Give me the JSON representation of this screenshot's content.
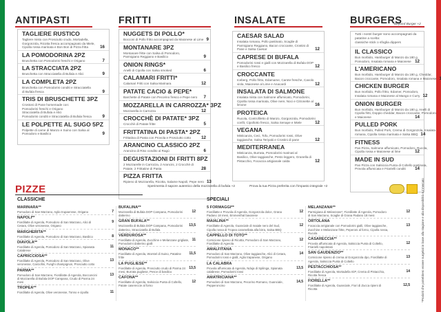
{
  "sections": {
    "antipasti": "ANTIPASTI",
    "fritti": "FRITTI",
    "insalate": "INSALATE",
    "burgers": "BURGERS",
    "pizze": "PIZZE"
  },
  "antipasti": [
    {
      "name": "TAGLIERE RUSTICO",
      "tag": "",
      "price": "16",
      "desc": [
        "Tagliere misto con Prosciutto crudo, Mortadella,",
        "Gorgonzola, Ricotta fresca accompagnato da Miele,",
        "Cipolla rossa marinata e Bon Bon di Pizza fritta"
      ]
    },
    {
      "name": "LA POMODORINA 2PZ",
      "tag": "",
      "price": "7",
      "desc": [
        "Bruschetta con Pomodorini freschi e Origano"
      ]
    },
    {
      "name": "LA STRACCIATA 2PZ",
      "tag": "",
      "price": "9",
      "desc": [
        "Bruschetta con Stracciatella di Bufala e Alici"
      ]
    },
    {
      "name": "LA COMPLETA 2PZ",
      "tag": "",
      "price": "9",
      "desc": [
        "Bruschetta con Pomodorini conditi e Stracciatella",
        "di Bufala fresca"
      ]
    },
    {
      "name": "TRIS DI BRUSCHETTE 3PZ",
      "tag": "",
      "price": "9",
      "desc": [
        "Crostoni di Pane homemade con:",
        "Pomodorini freschi e Origano",
        "Stracciatella di Bufala e Alici",
        "Pomodorini conditi e Stracciatella di Bufala fresca"
      ]
    },
    {
      "name": "LE POLPETTE AL SUGO 5PZ",
      "tag": "",
      "price": "9",
      "desc": [
        "Polpette di carne di Manzo e Suino con Salsa al",
        "Pomodoro e Basilico"
      ]
    }
  ],
  "fritti": [
    {
      "name": "NUGGETS DI POLLO*",
      "tag": "",
      "price": "9",
      "desc": [
        "Bocconi di Pollo fritto accompagnati da Maionese al Lime"
      ]
    },
    {
      "name": "MONTANARE 3PZ",
      "tag": "",
      "price": "9",
      "desc": [
        "Montanare fritte con Salsa di Pomodoro,",
        "Parmigiano Reggiano e Basilico"
      ]
    },
    {
      "name": "ONION RINGS*",
      "tag": "",
      "price": "6",
      "desc": [
        "Anelli di Cipolla con Salsa smoked"
      ]
    },
    {
      "name": "CALAMARI FRITTI*",
      "tag": "",
      "price": "12",
      "desc": [
        "Calamari Fritti con Salsa Marinara"
      ]
    },
    {
      "name": "PATATE CACIO & PEPE*",
      "tag": "",
      "price": "7",
      "desc": [
        "Barchette di Patate con Pecorino fresco e Pepe nero"
      ]
    },
    {
      "name": "MOZZARELLA IN CARROZZA* 3PZ",
      "tag": "",
      "price": "12",
      "desc": [
        "Mozzarella in Carrozza"
      ]
    },
    {
      "name": "CROCCHÈ DI PATATE* 3PZ",
      "tag": "",
      "price": "5",
      "desc": [
        "Crocchè di Patate fritte"
      ]
    },
    {
      "name": "FRITTATINA DI PASTA* 2PZ",
      "tag": "",
      "price": "12",
      "desc": [
        "Frittatina di Pasta con Provola e Prosciutto cotto"
      ]
    },
    {
      "name": "ARANCINO CLASSICO 2PZ",
      "tag": "",
      "price": "6",
      "desc": [
        "Arancino di Riso condito al Ragù"
      ]
    },
    {
      "name": "DEGUSTAZIONI DI FRITTI 8PZ",
      "tag": "",
      "price": "28",
      "desc": [
        "2 Mozzarelle in Carrozza, 2 Arancini, 2 Crocchè di",
        "Patate, 2 Frittatine di Pasta"
      ]
    },
    {
      "name": "PIZZA FRITTA",
      "tag": "",
      "price": "13",
      "desc": [
        "Ripieno di Mozzarella, Ricotta, Salame Napoli, Pepe nero"
      ]
    }
  ],
  "insalate": [
    {
      "name": "CAESAR SALAD",
      "tag": "",
      "price": "12",
      "desc": [
        "Insalata romana, Pollo pastinato, Scaglie di",
        "Parmigiano Reggiano, Bacon croccante, Crostini di",
        "Pane e Salsa Caesar"
      ]
    },
    {
      "name": "CAPRESE DI BUFALA",
      "tag": "",
      "price": "12",
      "desc": [
        "Pomodorini rossi e gialli con Mozzarella di Bufala DOP",
        "e Basilico fresco"
      ]
    },
    {
      "name": "CROCCANTE",
      "tag": "",
      "price": "12",
      "desc": [
        "Iceberg, Pollo fritto, Edamame, Carote fresche, Cavolo",
        "viola, Maionese al Lime e Anacardi"
      ]
    },
    {
      "name": "INSALATA DI SALMONE",
      "tag": "",
      "price": "16",
      "desc": [
        "Insalata mista con Salmone affumicato, Pomodorini,",
        "Cipolla rossa marinata, Olive nere, Noci e Citronette al",
        "limone"
      ]
    },
    {
      "name": "PROTEICA",
      "tag": "",
      "price": "12",
      "desc": [
        "Rucola, Controfiletto di Manzo, Gorgonzola, Pomodorini",
        "confit, Cipollotto fresco, Salsa Senape e Miele"
      ]
    },
    {
      "name": "VEGANA",
      "tag": "",
      "price": "12",
      "desc": [
        "Misticanza, Ceci, Tofu, Pomodorini rossi, Olive",
        "taggiasche, Salsa Teriyaki e Crostini di pane"
      ]
    },
    {
      "name": "MEDITERRANEA",
      "tag": "",
      "price": "12",
      "desc": [
        "Misticanza, Burrata, Pomodorini marinati al",
        "Basilico, Olive taggiasche, Pesto leggero, Granella di",
        "Pistacchio, Focaccia artigianale calda"
      ]
    }
  ],
  "burgers": {
    "beyond": "Beyond Burger +2",
    "intro": [
      "Tutti i nostri burger sono accompagnati da patatine a scelta:",
      "classiche stick o sfoglia dippers"
    ],
    "items": [
      {
        "name": "IL CLASSICO",
        "tag": "",
        "price": "12",
        "desc": [
          "Bun morbido, Hamburger di Manzo da 180 g,",
          "Pomodoro, Insalata romana e Maionese"
        ]
      },
      {
        "name": "L'AMERICANO",
        "tag": "",
        "price": "13",
        "desc": [
          "Bun morbido, Hamburger di Manzo da 180 g, Cheddar,",
          "Bacon croccante, Pomodoro, Insalata romana e Maionese"
        ]
      },
      {
        "name": "CHICKEN BURGER",
        "tag": "",
        "price": "12",
        "desc": [
          "Bun morbido, Pollo fritto, Edamer, Pomodoro,",
          "Insalata romana e Maionese al Mango e Curry"
        ]
      },
      {
        "name": "ONION BURGER",
        "tag": "",
        "price": "14",
        "desc": [
          "Bun morbido, Hamburger di Manzo da 180 g, Anelli di",
          "Cipolla fritti, Doppio cheddar, Bacon croccante, Pomodoro",
          "e Maionese"
        ]
      },
      {
        "name": "PULLED PORK",
        "tag": "",
        "price": "14",
        "desc": [
          "Bun morbido, Pulled Pork, Crema di Gorgonzola, Insalata",
          "romana, Cipolla rossa marinata e Salsa BBQ"
        ]
      },
      {
        "name": "FITNESS",
        "tag": "",
        "price": "12",
        "desc": [
          "Pan Pizza, Salmone affumicato, Pomodoro, Rucola,",
          "Cipolla rossa e Maionese al lime"
        ]
      },
      {
        "name": "MADE IN SUD",
        "tag": "",
        "price": "14",
        "desc": [
          "Pan Pizza con Salsiccia Punta di Coltello pastinata,",
          "Provola affumicata e Friarielli conditi"
        ]
      }
    ]
  },
  "pizza_notes": {
    "bufala": "Sperimenta il sapore autentico della mozzarella di bufala +2",
    "integrale": "Prova la tua Pizza preferita con l'impasto integrale +2",
    "allergens": "*Prodotti che potrebbero essere surgelati in base alla stagione e alla disponibilità sul mercato"
  },
  "pizze": {
    "classiche_title": "CLASSICHE",
    "speciali_title": "SPECIALI",
    "col1": [
      {
        "name": "MARINARA**",
        "price": "7",
        "desc": "Pomodoro di San Marzano, Aglio trupaennse, Origano"
      },
      {
        "name": "NAPOLI**",
        "price": "9",
        "desc": "Fiordilatte di Agerola, Pomodoro di San Marzano, Alici di Cetara, Olive veronesse, Origano"
      },
      {
        "name": "MARGHERITA**",
        "price": "8",
        "desc": "Fiordilatte di Agerola, Pomodoro di San Marzano, Basilico"
      },
      {
        "name": "DIAVOLA**",
        "price": "11",
        "desc": "Fiordilatte di Agerola, Pomodoro di San Marzano, Spianata Calabrese"
      },
      {
        "name": "CAPRICCIOSA**",
        "price": "13",
        "desc": "Fiordilatte di Agerola, Pomodoro di San Marzano, Olive veronesse, Carciofini, Funghi champignon, Prosciutto cotto"
      },
      {
        "name": "PARMA**",
        "price": "13",
        "desc": "Pomodoro di San Marzano, Fiordilatte di Agerola, Bocconcini di Mozzarella di Bufala DOP Campana, Crudo di Parma 24 mesi"
      },
      {
        "name": "TROPEA**",
        "price": "11",
        "desc": "Fiordilatte di Agerola, Olive veronesse, Tonno e cipolla"
      }
    ],
    "col2": [
      {
        "name": "BUFALINA**",
        "price": "12",
        "desc": "Mozzarella di Bufala DOP Campana, Pomodorini datterino"
      },
      {
        "name": "GRAN BUFALA**",
        "price": "13,5",
        "desc": "Mozzarella di Bufala DOP Campana, Pomodorini datterino, Stracciatella di Bufala"
      },
      {
        "name": "VERDUROSA**",
        "price": "11",
        "desc": "Fiordilatte di Agerola, Zucchine e Melanzane grigliate, Pomodorini datterino gialli"
      },
      {
        "name": "MONACO**",
        "price": "11,5",
        "desc": "Fiordilatte di Agerola, Wurstel di Suino, Patatine fritte"
      },
      {
        "name": "LA PUGLIESE**",
        "price": "13,5",
        "desc": "Fiordilatte di Agerola, Prosciutto crudo di Parma 24 mesi, Burrata pugliese, Pesce di basilico"
      },
      {
        "name": "CAFONA**",
        "price": "12",
        "desc": "Fiordilatte di Agerola, Salsiccia Punta di Coltello, Patate casereccie al forno"
      }
    ],
    "col3": [
      {
        "name": "5 FORMAGGI**",
        "price": "12",
        "desc": "Fiordilatte e Provola di Agerola, Gorgonzola dolce, Grana Padano 18 mesi, Emmenthal bavarese"
      },
      {
        "name": "MAIALINA**",
        "price": "12",
        "desc": "Fiordilatte di Agerola, Guanciale di maiale nero del Sud, Cipolla rossa di Tropea caramellata alla birra, Salsa BBQ"
      },
      {
        "name": "CAPPELLO DI TOTO**",
        "price": "12",
        "desc": "Cornicione ripieno di Ricotta, Pomodoro di San Marzano, Fiordilatte di Agerola"
      },
      {
        "name": "AMALFITANA",
        "price": "14",
        "desc": "Pomodoro di San Marzano, Olive taggiasche, Alici di Cetara, Pomodorini rossi e gialli, Aglio trapanese, Origano"
      },
      {
        "name": "LA CALABRA",
        "price": "13,5",
        "desc": "Provola affumicata di Agerola, Nduja di Spilinga, Spianata calabrese, Pomodorini rossi"
      },
      {
        "name": "AMATRICIANA**",
        "price": "14,5",
        "desc": "Pomodoro di San Marzano, Pecorino Romano, Guanciale, Pepperoncino"
      }
    ],
    "col4": [
      {
        "name": "MELANZANA**",
        "price": "12",
        "desc": "Parmigiana di Melanzane*, Fiordilatte di Agerola, Pomodoro di San Marzano, Scaglie di Grana Padano 18 mesi"
      },
      {
        "name": "ORTOLANA",
        "price": "13",
        "desc": "Focaccia arrigianale con Pomodorini gialli, Olive taggiasche, Zucchine e Melanzane fritte, Peperoni al forno, Cipolla rossa, Rucola"
      },
      {
        "name": "CASARECCIA**",
        "price": "12",
        "desc": "Provola affumicata di Agerola, Salsiccia Punta di Coltello, Friarielli napoletani"
      },
      {
        "name": "SAN GAUDENZIO**",
        "price": "13",
        "desc": "Cornicione ripieno di crema al Gorgonzola dpo, Fiordilatte di Agerola, Salsiccia Punta di Coltello"
      },
      {
        "name": "PESTACCHIOSA**",
        "price": "14",
        "desc": "Fiordilatte di Agerola, Mortadella IGP, Crema di Pistacchio, Ricotta fresca"
      },
      {
        "name": "FIORELLA**",
        "price": "12,5",
        "desc": "Fiordilatte di Agerola, Guanciale, Fiori di Zucca ripieni di Ricotta"
      }
    ]
  },
  "colors": {
    "green": "#0c8a3e",
    "red": "#d92b2b",
    "accent": "#c6262b"
  }
}
